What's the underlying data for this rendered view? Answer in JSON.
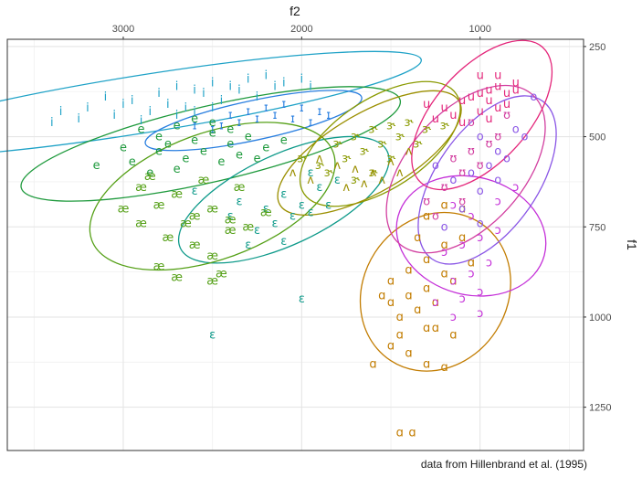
{
  "chart_data": {
    "type": "scatter",
    "title": "",
    "xlabel": "f2",
    "ylabel": "f1",
    "x_axis_position": "top",
    "y_axis_position": "right",
    "x_reversed": true,
    "y_reversed": true,
    "xlim": [
      3650,
      420
    ],
    "ylim": [
      230,
      1370
    ],
    "x_ticks": [
      3000,
      2000,
      1000
    ],
    "y_ticks": [
      250,
      500,
      750,
      1000,
      1250
    ],
    "grid": true,
    "legend": "none",
    "caption": "data from Hillenbrand et al. (1995)",
    "colors": {
      "i": "#1fa2c7",
      "ɪ": "#2a7fe0",
      "e": "#1f9a3d",
      "ɛ": "#0e9a8a",
      "æ": "#55a017",
      "ɝ": "#8a9a00",
      "ʌ": "#9b8f00",
      "ɑ": "#c27c00",
      "ɔ": "#c42fd8",
      "o": "#8a56e6",
      "ʊ": "#d23fa0",
      "u": "#e4257a"
    },
    "series": [
      {
        "name": "i",
        "cx": 2900,
        "cy": 410,
        "rx": 1590,
        "ry": 80,
        "deg": -9,
        "points": [
          [
            3350,
            430
          ],
          [
            3200,
            420
          ],
          [
            3100,
            390
          ],
          [
            2950,
            400
          ],
          [
            2800,
            380
          ],
          [
            2700,
            360
          ],
          [
            2600,
            370
          ],
          [
            2500,
            350
          ],
          [
            2400,
            360
          ],
          [
            2300,
            340
          ],
          [
            2200,
            330
          ],
          [
            3050,
            440
          ],
          [
            2850,
            430
          ],
          [
            2650,
            420
          ],
          [
            2450,
            400
          ],
          [
            2250,
            390
          ],
          [
            2150,
            360
          ],
          [
            3250,
            450
          ],
          [
            3400,
            460
          ],
          [
            2750,
            410
          ],
          [
            2550,
            380
          ],
          [
            2350,
            370
          ],
          [
            3000,
            410
          ],
          [
            2900,
            455
          ],
          [
            2600,
            430
          ],
          [
            2100,
            350
          ],
          [
            2000,
            340
          ],
          [
            1950,
            360
          ],
          [
            2700,
            440
          ],
          [
            2500,
            420
          ]
        ]
      },
      {
        "name": "ɪ",
        "cx": 2270,
        "cy": 455,
        "rx": 620,
        "ry": 55,
        "deg": -12,
        "points": [
          [
            2400,
            440
          ],
          [
            2300,
            430
          ],
          [
            2200,
            420
          ],
          [
            2100,
            410
          ],
          [
            2000,
            420
          ],
          [
            1900,
            430
          ],
          [
            2450,
            470
          ],
          [
            2350,
            460
          ],
          [
            2250,
            450
          ],
          [
            2150,
            440
          ],
          [
            2050,
            450
          ],
          [
            1950,
            460
          ],
          [
            1850,
            440
          ],
          [
            2500,
            480
          ],
          [
            2600,
            470
          ]
        ]
      },
      {
        "name": "e",
        "cx": 2510,
        "cy": 520,
        "rx": 1090,
        "ry": 105,
        "deg": -13,
        "points": [
          [
            2900,
            480
          ],
          [
            2800,
            500
          ],
          [
            2700,
            470
          ],
          [
            2600,
            510
          ],
          [
            2500,
            490
          ],
          [
            2400,
            520
          ],
          [
            2300,
            500
          ],
          [
            2200,
            530
          ],
          [
            2100,
            510
          ],
          [
            2800,
            540
          ],
          [
            2650,
            560
          ],
          [
            2550,
            540
          ],
          [
            2450,
            570
          ],
          [
            2350,
            550
          ],
          [
            2250,
            560
          ],
          [
            3000,
            530
          ],
          [
            2750,
            520
          ],
          [
            2950,
            570
          ],
          [
            2850,
            600
          ],
          [
            2700,
            590
          ],
          [
            3150,
            580
          ],
          [
            2600,
            450
          ],
          [
            2500,
            460
          ],
          [
            2400,
            480
          ]
        ]
      },
      {
        "name": "ɛ",
        "cx": 2100,
        "cy": 675,
        "rx": 640,
        "ry": 125,
        "deg": -25,
        "points": [
          [
            2350,
            680
          ],
          [
            2200,
            700
          ],
          [
            2100,
            660
          ],
          [
            2000,
            690
          ],
          [
            1900,
            640
          ],
          [
            1800,
            620
          ],
          [
            2250,
            760
          ],
          [
            2150,
            740
          ],
          [
            2050,
            720
          ],
          [
            1950,
            710
          ],
          [
            2300,
            800
          ],
          [
            2100,
            790
          ],
          [
            2400,
            720
          ],
          [
            1850,
            690
          ],
          [
            2000,
            950
          ],
          [
            2500,
            1050
          ],
          [
            2600,
            650
          ],
          [
            1950,
            600
          ]
        ]
      },
      {
        "name": "æ",
        "cx": 2500,
        "cy": 665,
        "rx": 720,
        "ry": 175,
        "deg": -20,
        "points": [
          [
            2900,
            640
          ],
          [
            2800,
            690
          ],
          [
            2700,
            660
          ],
          [
            2600,
            720
          ],
          [
            2500,
            700
          ],
          [
            2400,
            730
          ],
          [
            2300,
            750
          ],
          [
            2200,
            710
          ],
          [
            2900,
            740
          ],
          [
            2750,
            780
          ],
          [
            2600,
            800
          ],
          [
            2500,
            830
          ],
          [
            2400,
            760
          ],
          [
            2450,
            880
          ],
          [
            2500,
            900
          ],
          [
            2700,
            890
          ],
          [
            2800,
            860
          ],
          [
            2650,
            740
          ],
          [
            3000,
            700
          ],
          [
            2850,
            610
          ],
          [
            2550,
            620
          ],
          [
            2350,
            640
          ]
        ]
      },
      {
        "name": "ɝ",
        "cx": 1560,
        "cy": 520,
        "rx": 510,
        "ry": 125,
        "deg": -33,
        "points": [
          [
            1800,
            520
          ],
          [
            1700,
            500
          ],
          [
            1600,
            480
          ],
          [
            1500,
            470
          ],
          [
            1400,
            460
          ],
          [
            1300,
            480
          ],
          [
            1200,
            470
          ],
          [
            1750,
            560
          ],
          [
            1650,
            540
          ],
          [
            1550,
            520
          ],
          [
            1450,
            500
          ],
          [
            1900,
            580
          ],
          [
            1850,
            600
          ],
          [
            1700,
            620
          ],
          [
            1600,
            600
          ],
          [
            1500,
            560
          ],
          [
            1350,
            520
          ],
          [
            2000,
            560
          ]
        ]
      },
      {
        "name": "ʌ",
        "cx": 1620,
        "cy": 545,
        "rx": 580,
        "ry": 110,
        "deg": -30,
        "points": [
          [
            1900,
            560
          ],
          [
            1800,
            580
          ],
          [
            1700,
            590
          ],
          [
            1600,
            600
          ],
          [
            1500,
            570
          ],
          [
            1400,
            540
          ],
          [
            1750,
            640
          ],
          [
            1650,
            630
          ],
          [
            1550,
            620
          ],
          [
            2050,
            600
          ],
          [
            1950,
            620
          ],
          [
            1450,
            600
          ]
        ]
      },
      {
        "name": "ɑ",
        "cx": 1250,
        "cy": 930,
        "rx": 460,
        "ry": 200,
        "deg": -57,
        "points": [
          [
            1500,
            900
          ],
          [
            1400,
            870
          ],
          [
            1300,
            840
          ],
          [
            1200,
            800
          ],
          [
            1100,
            780
          ],
          [
            1500,
            960
          ],
          [
            1400,
            940
          ],
          [
            1300,
            920
          ],
          [
            1200,
            880
          ],
          [
            1450,
            1000
          ],
          [
            1350,
            980
          ],
          [
            1250,
            960
          ],
          [
            1150,
            900
          ],
          [
            1500,
            1080
          ],
          [
            1400,
            1100
          ],
          [
            1300,
            1130
          ],
          [
            1200,
            1140
          ],
          [
            1600,
            1130
          ],
          [
            1450,
            1050
          ],
          [
            1300,
            1030
          ],
          [
            1250,
            1030
          ],
          [
            1150,
            1050
          ],
          [
            1050,
            850
          ],
          [
            1100,
            700
          ],
          [
            1300,
            720
          ],
          [
            1200,
            690
          ],
          [
            1450,
            1320
          ],
          [
            1380,
            1320
          ],
          [
            1550,
            940
          ],
          [
            1350,
            780
          ]
        ]
      },
      {
        "name": "ɔ",
        "cx": 1050,
        "cy": 775,
        "rx": 330,
        "ry": 210,
        "deg": -75,
        "points": [
          [
            1200,
            820
          ],
          [
            1100,
            800
          ],
          [
            1000,
            780
          ],
          [
            900,
            760
          ],
          [
            1150,
            900
          ],
          [
            1050,
            880
          ],
          [
            950,
            850
          ],
          [
            1250,
            960
          ],
          [
            1100,
            950
          ],
          [
            1000,
            930
          ],
          [
            900,
            680
          ],
          [
            800,
            640
          ],
          [
            1150,
            1000
          ],
          [
            1050,
            720
          ],
          [
            1000,
            990
          ],
          [
            1150,
            690
          ]
        ]
      },
      {
        "name": "o",
        "cx": 960,
        "cy": 620,
        "rx": 540,
        "ry": 140,
        "deg": -55,
        "points": [
          [
            1150,
            620
          ],
          [
            1050,
            600
          ],
          [
            950,
            580
          ],
          [
            850,
            560
          ],
          [
            750,
            500
          ],
          [
            800,
            480
          ],
          [
            1000,
            650
          ],
          [
            900,
            620
          ],
          [
            1100,
            700
          ],
          [
            1000,
            740
          ],
          [
            1200,
            750
          ],
          [
            900,
            540
          ],
          [
            700,
            390
          ],
          [
            1250,
            580
          ],
          [
            1000,
            500
          ]
        ]
      },
      {
        "name": "ʊ",
        "cx": 1080,
        "cy": 590,
        "rx": 560,
        "ry": 160,
        "deg": -48,
        "points": [
          [
            1150,
            560
          ],
          [
            1050,
            540
          ],
          [
            950,
            520
          ],
          [
            1100,
            600
          ],
          [
            1000,
            580
          ],
          [
            900,
            500
          ],
          [
            1200,
            640
          ],
          [
            1100,
            680
          ],
          [
            1300,
            680
          ],
          [
            1050,
            460
          ],
          [
            850,
            440
          ],
          [
            1250,
            720
          ]
        ]
      },
      {
        "name": "u",
        "cx": 990,
        "cy": 440,
        "rx": 510,
        "ry": 130,
        "deg": -48,
        "points": [
          [
            1000,
            380
          ],
          [
            950,
            370
          ],
          [
            900,
            360
          ],
          [
            850,
            380
          ],
          [
            800,
            370
          ],
          [
            1050,
            390
          ],
          [
            1100,
            400
          ],
          [
            1200,
            420
          ],
          [
            1150,
            440
          ],
          [
            1000,
            430
          ],
          [
            950,
            450
          ],
          [
            900,
            420
          ],
          [
            800,
            350
          ],
          [
            1250,
            450
          ],
          [
            1300,
            410
          ],
          [
            1000,
            330
          ],
          [
            900,
            330
          ],
          [
            950,
            400
          ],
          [
            1100,
            460
          ],
          [
            850,
            410
          ]
        ]
      }
    ]
  }
}
